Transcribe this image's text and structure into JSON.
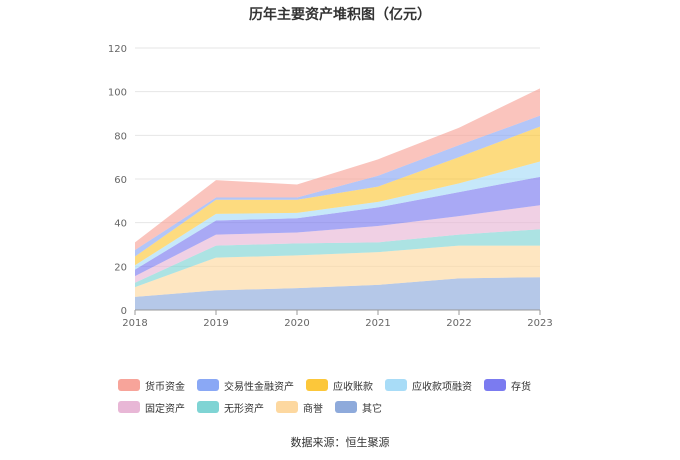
{
  "chart_data": {
    "type": "area",
    "stacked": true,
    "title": "历年主要资产堆积图（亿元）",
    "categories": [
      "2018",
      "2019",
      "2020",
      "2021",
      "2022",
      "2023"
    ],
    "ylim": [
      0,
      120
    ],
    "yticks": [
      0,
      20,
      40,
      60,
      80,
      100,
      120
    ],
    "series": [
      {
        "name": "其它",
        "color": "#8eaadb",
        "values": [
          6,
          9,
          10,
          11.5,
          14.5,
          15
        ]
      },
      {
        "name": "商誉",
        "color": "#fdd8a0",
        "values": [
          4.5,
          15,
          15,
          15,
          15,
          14.5
        ]
      },
      {
        "name": "无形资产",
        "color": "#7fd4d4",
        "values": [
          2,
          5.5,
          5.5,
          4.5,
          5,
          7.5
        ]
      },
      {
        "name": "固定资产",
        "color": "#e8b7d6",
        "values": [
          3,
          5,
          5,
          7.5,
          8.5,
          11
        ]
      },
      {
        "name": "存货",
        "color": "#7b7bf0",
        "values": [
          3,
          6.5,
          6.5,
          8.5,
          11,
          13
        ]
      },
      {
        "name": "应收款项融资",
        "color": "#a8dcf7",
        "values": [
          2,
          3,
          2.5,
          2.5,
          4,
          7
        ]
      },
      {
        "name": "应收账款",
        "color": "#fcc73a",
        "values": [
          4,
          6.5,
          6,
          7,
          12,
          16
        ]
      },
      {
        "name": "交易性金融资产",
        "color": "#8aa8f5",
        "values": [
          3,
          1,
          1,
          5,
          5.5,
          5
        ]
      },
      {
        "name": "货币资金",
        "color": "#f7a49a",
        "values": [
          3.5,
          8,
          6,
          7.5,
          8,
          12.5
        ]
      }
    ]
  },
  "legend_order": [
    "货币资金",
    "交易性金融资产",
    "应收账款",
    "应收款项融资",
    "存货",
    "固定资产",
    "无形资产",
    "商誉",
    "其它"
  ],
  "source": "数据来源：恒生聚源"
}
